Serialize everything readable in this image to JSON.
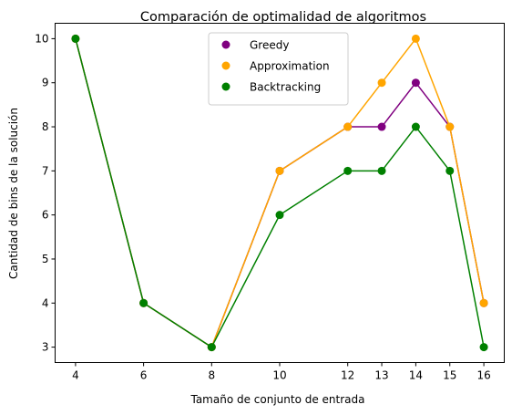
{
  "chart_data": {
    "type": "line",
    "title": "Comparación de optimalidad de algoritmos",
    "xlabel": "Tamaño de conjunto de entrada",
    "ylabel": "Cantidad de bins de la solución",
    "x": [
      4,
      6,
      8,
      10,
      12,
      13,
      14,
      15,
      16
    ],
    "x_ticks": [
      "4",
      "6",
      "8",
      "10",
      "12",
      "13",
      "14",
      "15",
      "16"
    ],
    "y_ticks": [
      "3",
      "4",
      "5",
      "6",
      "7",
      "8",
      "9",
      "10"
    ],
    "xlim": [
      3.4,
      16.6
    ],
    "ylim": [
      2.65,
      10.35
    ],
    "grid": false,
    "legend_position": "top-center",
    "series": [
      {
        "name": "Greedy",
        "color": "#800080",
        "values": [
          10,
          4,
          3,
          7,
          8,
          8,
          9,
          8,
          4
        ]
      },
      {
        "name": "Approximation",
        "color": "#ffa500",
        "values": [
          10,
          4,
          3,
          7,
          8,
          9,
          10,
          8,
          4
        ]
      },
      {
        "name": "Backtracking",
        "color": "#008000",
        "values": [
          10,
          4,
          3,
          6,
          7,
          7,
          8,
          7,
          3
        ]
      }
    ]
  }
}
